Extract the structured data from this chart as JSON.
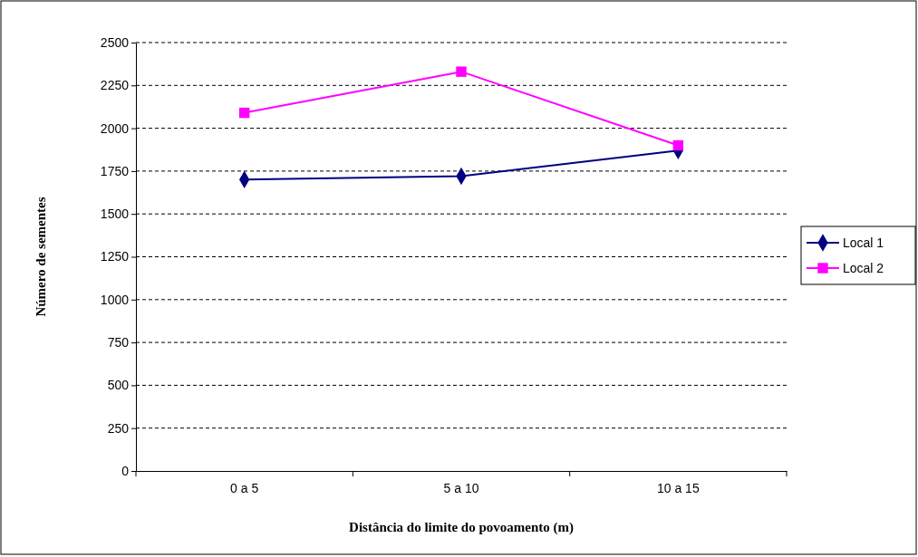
{
  "chart_data": {
    "type": "line",
    "xlabel": "Distância do limite do povoamento (m)",
    "ylabel": "Número de sementes",
    "categories": [
      "0 a 5",
      "5 a 10",
      "10 a 15"
    ],
    "series": [
      {
        "name": "Local 1",
        "color": "#000080",
        "values": [
          1700,
          1720,
          1870
        ],
        "marker": "diamond"
      },
      {
        "name": "Local 2",
        "color": "#ff00ff",
        "values": [
          2090,
          2330,
          1900
        ],
        "marker": "square"
      }
    ],
    "ylim": [
      0,
      2500
    ],
    "yticks": [
      0,
      250,
      500,
      750,
      1000,
      1250,
      1500,
      1750,
      2000,
      2250,
      2500
    ],
    "grid": "y",
    "legend": "right",
    "line_style": "solid"
  }
}
